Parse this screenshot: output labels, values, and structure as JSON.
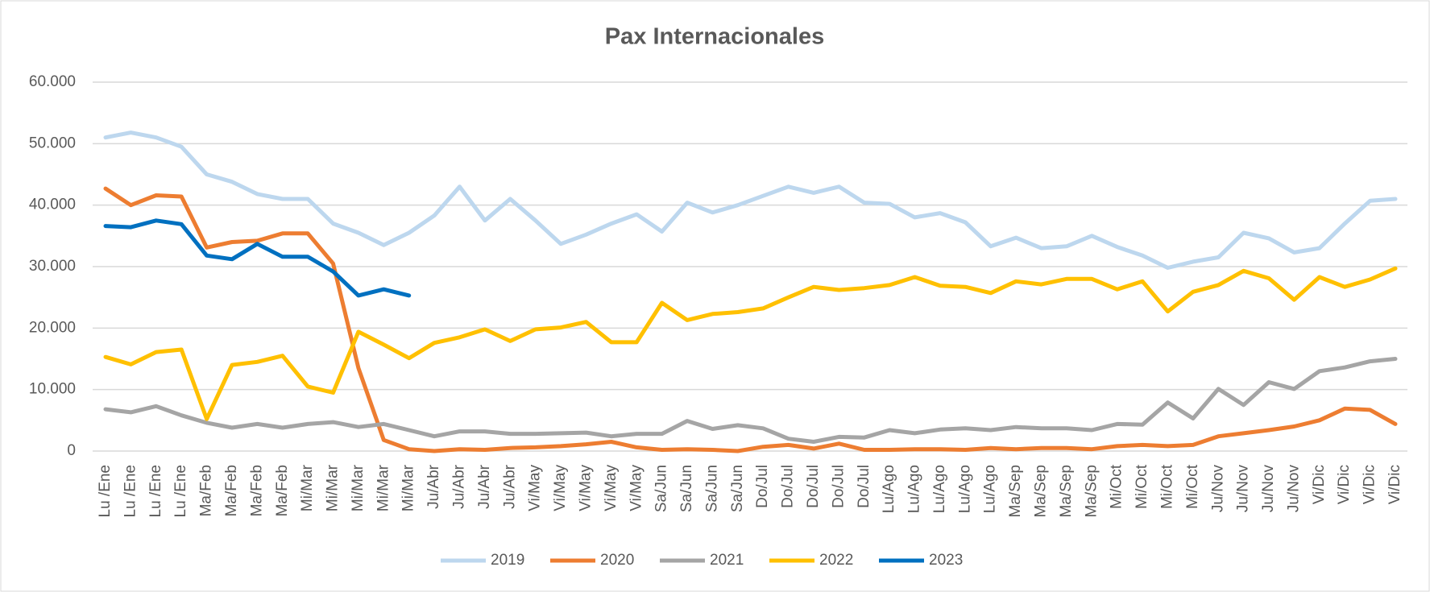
{
  "chart_data": {
    "type": "line",
    "title": "Pax Internacionales",
    "categories": [
      "Lu /Ene",
      "Lu /Ene",
      "Lu /Ene",
      "Lu /Ene",
      "Ma/Feb",
      "Ma/Feb",
      "Ma/Feb",
      "Ma/Feb",
      "Mi/Mar",
      "Mi/Mar",
      "Mi/Mar",
      "Mi/Mar",
      "Mi/Mar",
      "Ju/Abr",
      "Ju/Abr",
      "Ju/Abr",
      "Ju/Abr",
      "Vi/May",
      "Vi/May",
      "Vi/May",
      "Vi/May",
      "Vi/May",
      "Sa/Jun",
      "Sa/Jun",
      "Sa/Jun",
      "Sa/Jun",
      "Do/Jul",
      "Do/Jul",
      "Do/Jul",
      "Do/Jul",
      "Do/Jul",
      "Lu/Ago",
      "Lu/Ago",
      "Lu/Ago",
      "Lu/Ago",
      "Lu/Ago",
      "Ma/Sep",
      "Ma/Sep",
      "Ma/Sep",
      "Ma/Sep",
      "Mi/Oct",
      "Mi/Oct",
      "Mi/Oct",
      "Mi/Oct",
      "Ju/Nov",
      "Ju/Nov",
      "Ju/Nov",
      "Ju/Nov",
      "Vi/Dic",
      "Vi/Dic",
      "Vi/Dic",
      "Vi/Dic"
    ],
    "series": [
      {
        "name": "2019",
        "color": "#bdd7ee",
        "values": [
          51000,
          51800,
          51000,
          49500,
          45000,
          43800,
          41800,
          41000,
          41000,
          37000,
          35500,
          33500,
          35500,
          38300,
          43000,
          37500,
          41000,
          37500,
          33700,
          35200,
          37000,
          38500,
          35700,
          40400,
          38800,
          40000,
          41500,
          43000,
          42000,
          43000,
          40400,
          40200,
          38000,
          38700,
          37200,
          33300,
          34700,
          33000,
          33300,
          35000,
          33200,
          31800,
          29800,
          30800,
          31500,
          35500,
          34600,
          32300,
          33000,
          37000,
          40700,
          41000
        ]
      },
      {
        "name": "2020",
        "color": "#ed7d31",
        "values": [
          42700,
          40000,
          41600,
          41400,
          33100,
          34000,
          34200,
          35400,
          35400,
          30500,
          13500,
          1800,
          300,
          0,
          300,
          200,
          500,
          600,
          800,
          1100,
          1500,
          600,
          200,
          300,
          200,
          0,
          700,
          1000,
          400,
          1200,
          200,
          200,
          300,
          300,
          200,
          500,
          300,
          500,
          500,
          300,
          800,
          1000,
          800,
          1000,
          2400,
          2900,
          3400,
          4000,
          5000,
          6900,
          6700,
          4400
        ]
      },
      {
        "name": "2021",
        "color": "#a5a5a5",
        "values": [
          6800,
          6300,
          7300,
          5800,
          4600,
          3800,
          4400,
          3800,
          4400,
          4700,
          3900,
          4400,
          3400,
          2400,
          3200,
          3200,
          2800,
          2800,
          2900,
          3000,
          2400,
          2800,
          2800,
          4900,
          3600,
          4200,
          3700,
          2000,
          1500,
          2300,
          2200,
          3400,
          2900,
          3500,
          3700,
          3400,
          3900,
          3700,
          3700,
          3400,
          4400,
          4300,
          7900,
          5300,
          10100,
          7500,
          11200,
          10100,
          13000,
          13600,
          14600,
          15000
        ]
      },
      {
        "name": "2022",
        "color": "#ffc000",
        "values": [
          15300,
          14100,
          16100,
          16500,
          5200,
          14000,
          14500,
          15500,
          10500,
          9500,
          19400,
          17300,
          15100,
          17600,
          18500,
          19800,
          17900,
          19800,
          20100,
          21000,
          17700,
          17700,
          24100,
          21300,
          22300,
          22600,
          23200,
          25000,
          26700,
          26200,
          26500,
          27000,
          28300,
          26900,
          26700,
          25700,
          27600,
          27100,
          28000,
          28000,
          26300,
          27600,
          22700,
          25900,
          27000,
          29300,
          28100,
          24600,
          28300,
          26700,
          27900,
          29700
        ]
      },
      {
        "name": "2023",
        "color": "#0070c0",
        "values": [
          36600,
          36400,
          37500,
          36900,
          31800,
          31200,
          33700,
          31600,
          31600,
          29200,
          25300,
          26300,
          25300,
          null,
          null,
          null,
          null,
          null,
          null,
          null,
          null,
          null,
          null,
          null,
          null,
          null,
          null,
          null,
          null,
          null,
          null,
          null,
          null,
          null,
          null,
          null,
          null,
          null,
          null,
          null,
          null,
          null,
          null,
          null,
          null,
          null,
          null,
          null,
          null,
          null,
          null,
          null
        ]
      }
    ],
    "ylim": [
      0,
      60000
    ],
    "yticks": [
      0,
      {
        "value": 10000,
        "label": "10.000"
      },
      {
        "value": 20000,
        "label": "20.000"
      },
      {
        "value": 30000,
        "label": "30.000"
      },
      {
        "value": 40000,
        "label": "40.000"
      },
      {
        "value": 50000,
        "label": "50.000"
      },
      {
        "value": 60000,
        "label": "60.000"
      }
    ],
    "grid": true,
    "legend": "bottom"
  }
}
